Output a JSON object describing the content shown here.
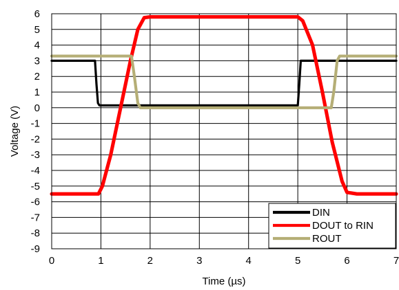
{
  "chart_data": {
    "type": "line",
    "xlabel": "Time (µs)",
    "ylabel": "Voltage (V)",
    "xlim": [
      0,
      7
    ],
    "ylim": [
      -9,
      6
    ],
    "xticks": [
      0,
      1,
      2,
      3,
      4,
      5,
      6,
      7
    ],
    "yticks": [
      6,
      5,
      4,
      3,
      2,
      1,
      0,
      -1,
      -2,
      -3,
      -4,
      -5,
      -6,
      -7,
      -8,
      -9
    ],
    "grid": true,
    "legend_position": "bottom-right",
    "series": [
      {
        "name": "DIN",
        "color": "#000000",
        "x": [
          0,
          0.88,
          0.91,
          0.94,
          0.97,
          5.0,
          5.03,
          5.06,
          7.0
        ],
        "y": [
          3.0,
          3.0,
          1.5,
          0.3,
          0.15,
          0.15,
          1.5,
          3.0,
          3.0
        ]
      },
      {
        "name": "DOUT to RIN",
        "color": "#ff0000",
        "x": [
          0,
          0.95,
          1.03,
          1.2,
          1.4,
          1.6,
          1.75,
          1.88,
          2.0,
          5.0,
          5.1,
          5.3,
          5.5,
          5.7,
          5.9,
          6.0,
          6.2,
          7.0
        ],
        "y": [
          -5.5,
          -5.5,
          -5.0,
          -3.0,
          0.0,
          3.0,
          5.0,
          5.75,
          5.8,
          5.8,
          5.55,
          4.0,
          1.0,
          -2.2,
          -4.7,
          -5.4,
          -5.5,
          -5.5
        ],
        "stroke_scale": 1.6
      },
      {
        "name": "ROUT",
        "color": "#b5ae76",
        "x": [
          0,
          1.62,
          1.68,
          1.75,
          1.8,
          5.68,
          5.73,
          5.8,
          5.85,
          7.0
        ],
        "y": [
          3.3,
          3.3,
          2.0,
          0.3,
          0.0,
          0.0,
          1.0,
          3.0,
          3.3,
          3.3
        ],
        "stroke_scale": 1.3
      }
    ]
  }
}
